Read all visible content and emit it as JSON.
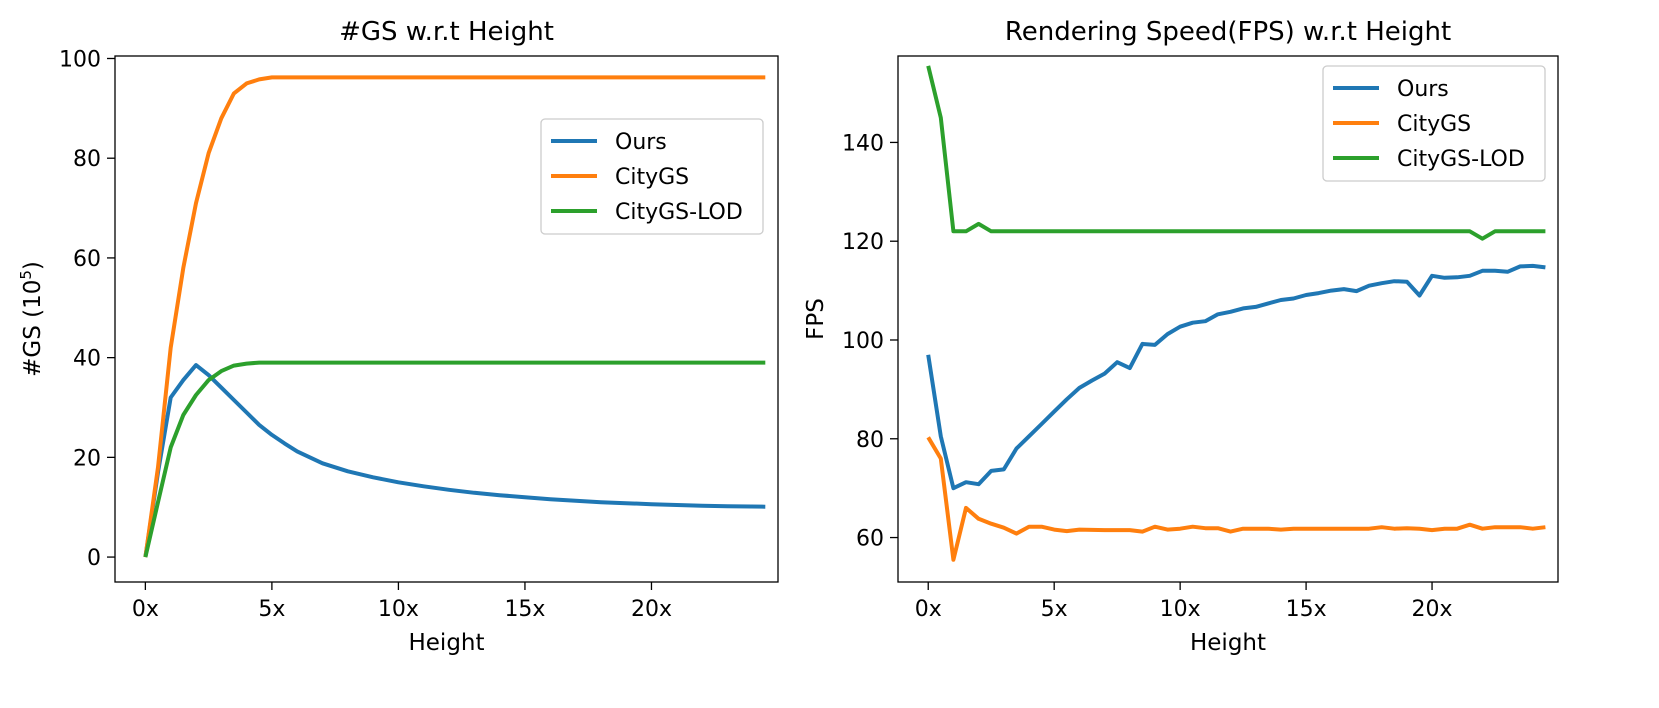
{
  "colors": {
    "ours": "#1f77b4",
    "citygs": "#ff7f0e",
    "citygs_lod": "#2ca02c"
  },
  "chart_data": [
    {
      "type": "line",
      "title": "#GS w.r.t Height",
      "xlabel": "Height",
      "ylabel_prefix": "#GS (10",
      "ylabel_sup": "5",
      "ylabel_suffix": ")",
      "xlim": [
        -1.2,
        25
      ],
      "ylim": [
        -5,
        100.5
      ],
      "xticks": [
        0,
        5,
        10,
        15,
        20
      ],
      "xtick_labels": [
        "0x",
        "5x",
        "10x",
        "15x",
        "20x"
      ],
      "yticks": [
        0,
        20,
        40,
        60,
        80,
        100
      ],
      "ytick_labels": [
        "0",
        "20",
        "40",
        "60",
        "80",
        "100"
      ],
      "grid": false,
      "legend_position": "upper-right-inset",
      "series": [
        {
          "name": "Ours",
          "color_key": "ours",
          "points": [
            [
              0,
              0
            ],
            [
              0.5,
              17
            ],
            [
              1,
              32
            ],
            [
              1.5,
              35.5
            ],
            [
              2,
              38.5
            ],
            [
              2.5,
              36.5
            ],
            [
              3,
              34
            ],
            [
              3.5,
              31.5
            ],
            [
              4,
              29
            ],
            [
              4.5,
              26.5
            ],
            [
              5,
              24.5
            ],
            [
              5.5,
              22.8
            ],
            [
              6,
              21.2
            ],
            [
              7,
              18.8
            ],
            [
              8,
              17.2
            ],
            [
              9,
              16
            ],
            [
              10,
              15
            ],
            [
              11,
              14.2
            ],
            [
              12,
              13.5
            ],
            [
              13,
              12.9
            ],
            [
              14,
              12.4
            ],
            [
              15,
              12
            ],
            [
              16,
              11.6
            ],
            [
              17,
              11.3
            ],
            [
              18,
              11
            ],
            [
              19,
              10.8
            ],
            [
              20,
              10.6
            ],
            [
              21,
              10.45
            ],
            [
              22,
              10.3
            ],
            [
              23,
              10.2
            ],
            [
              24.5,
              10.1
            ]
          ]
        },
        {
          "name": "CityGS",
          "color_key": "citygs",
          "points": [
            [
              0,
              0
            ],
            [
              0.5,
              18
            ],
            [
              1,
              42
            ],
            [
              1.5,
              58
            ],
            [
              2,
              71
            ],
            [
              2.5,
              81
            ],
            [
              3,
              88
            ],
            [
              3.5,
              93
            ],
            [
              4,
              95
            ],
            [
              4.5,
              95.8
            ],
            [
              5,
              96.2
            ],
            [
              6,
              96.2
            ],
            [
              10,
              96.2
            ],
            [
              15,
              96.2
            ],
            [
              20,
              96.2
            ],
            [
              24.5,
              96.2
            ]
          ]
        },
        {
          "name": "CityGS-LOD",
          "color_key": "citygs_lod",
          "points": [
            [
              0,
              0
            ],
            [
              0.5,
              11
            ],
            [
              1,
              22
            ],
            [
              1.5,
              28.5
            ],
            [
              2,
              32.5
            ],
            [
              2.5,
              35.5
            ],
            [
              3,
              37.3
            ],
            [
              3.5,
              38.4
            ],
            [
              4,
              38.8
            ],
            [
              4.5,
              39
            ],
            [
              5,
              39
            ],
            [
              10,
              39
            ],
            [
              15,
              39
            ],
            [
              20,
              39
            ],
            [
              24.5,
              39
            ]
          ]
        }
      ]
    },
    {
      "type": "line",
      "title": "Rendering Speed(FPS) w.r.t Height",
      "xlabel": "Height",
      "ylabel": "FPS",
      "xlim": [
        -1.2,
        25
      ],
      "ylim": [
        51,
        157.5
      ],
      "xticks": [
        0,
        5,
        10,
        15,
        20
      ],
      "xtick_labels": [
        "0x",
        "5x",
        "10x",
        "15x",
        "20x"
      ],
      "yticks": [
        60,
        80,
        100,
        120,
        140
      ],
      "ytick_labels": [
        "60",
        "80",
        "100",
        "120",
        "140"
      ],
      "grid": false,
      "legend_position": "upper-right",
      "series": [
        {
          "name": "Ours",
          "color_key": "ours",
          "points": [
            [
              0,
              97
            ],
            [
              0.5,
              80.5
            ],
            [
              1,
              70
            ],
            [
              1.5,
              71.2
            ],
            [
              2,
              70.8
            ],
            [
              2.5,
              73.5
            ],
            [
              3,
              73.8
            ],
            [
              3.5,
              78
            ],
            [
              4,
              80.5
            ],
            [
              4.5,
              83
            ],
            [
              5,
              85.5
            ],
            [
              5.5,
              88
            ],
            [
              6,
              90.3
            ],
            [
              6.5,
              91.8
            ],
            [
              7,
              93.2
            ],
            [
              7.5,
              95.5
            ],
            [
              8,
              94.3
            ],
            [
              8.5,
              99.2
            ],
            [
              9,
              99
            ],
            [
              9.5,
              101.2
            ],
            [
              10,
              102.7
            ],
            [
              10.5,
              103.5
            ],
            [
              11,
              103.8
            ],
            [
              11.5,
              105.2
            ],
            [
              12,
              105.7
            ],
            [
              12.5,
              106.4
            ],
            [
              13,
              106.7
            ],
            [
              13.5,
              107.4
            ],
            [
              14,
              108.1
            ],
            [
              14.5,
              108.4
            ],
            [
              15,
              109.1
            ],
            [
              15.5,
              109.5
            ],
            [
              16,
              110
            ],
            [
              16.5,
              110.3
            ],
            [
              17,
              109.9
            ],
            [
              17.5,
              111
            ],
            [
              18,
              111.5
            ],
            [
              18.5,
              111.9
            ],
            [
              19,
              111.8
            ],
            [
              19.5,
              109
            ],
            [
              20,
              113
            ],
            [
              20.5,
              112.6
            ],
            [
              21,
              112.7
            ],
            [
              21.5,
              113
            ],
            [
              22,
              114
            ],
            [
              22.5,
              114
            ],
            [
              23,
              113.8
            ],
            [
              23.5,
              114.9
            ],
            [
              24,
              115
            ],
            [
              24.5,
              114.7
            ]
          ]
        },
        {
          "name": "CityGS",
          "color_key": "citygs",
          "points": [
            [
              0,
              80.3
            ],
            [
              0.5,
              76
            ],
            [
              1,
              55.5
            ],
            [
              1.5,
              66
            ],
            [
              2,
              63.8
            ],
            [
              2.5,
              62.8
            ],
            [
              3,
              62
            ],
            [
              3.5,
              60.8
            ],
            [
              4,
              62.2
            ],
            [
              4.5,
              62.2
            ],
            [
              5,
              61.6
            ],
            [
              5.5,
              61.3
            ],
            [
              6,
              61.6
            ],
            [
              7,
              61.5
            ],
            [
              8,
              61.5
            ],
            [
              8.5,
              61.2
            ],
            [
              9,
              62.2
            ],
            [
              9.5,
              61.6
            ],
            [
              10,
              61.8
            ],
            [
              10.5,
              62.2
            ],
            [
              11,
              61.9
            ],
            [
              11.5,
              61.9
            ],
            [
              12,
              61.2
            ],
            [
              12.5,
              61.8
            ],
            [
              13,
              61.8
            ],
            [
              13.5,
              61.8
            ],
            [
              14,
              61.6
            ],
            [
              14.5,
              61.8
            ],
            [
              15,
              61.8
            ],
            [
              16,
              61.8
            ],
            [
              17,
              61.8
            ],
            [
              17.5,
              61.8
            ],
            [
              18,
              62.1
            ],
            [
              18.5,
              61.8
            ],
            [
              19,
              61.9
            ],
            [
              19.5,
              61.8
            ],
            [
              20,
              61.5
            ],
            [
              20.5,
              61.8
            ],
            [
              21,
              61.8
            ],
            [
              21.5,
              62.6
            ],
            [
              22,
              61.8
            ],
            [
              22.5,
              62.1
            ],
            [
              23,
              62.1
            ],
            [
              23.5,
              62.1
            ],
            [
              24,
              61.8
            ],
            [
              24.5,
              62.1
            ]
          ]
        },
        {
          "name": "CityGS-LOD",
          "color_key": "citygs_lod",
          "points": [
            [
              0,
              155.5
            ],
            [
              0.5,
              145
            ],
            [
              1,
              122
            ],
            [
              1.5,
              122
            ],
            [
              2,
              123.5
            ],
            [
              2.5,
              122
            ],
            [
              3,
              122
            ],
            [
              5,
              122
            ],
            [
              10,
              122
            ],
            [
              15,
              122
            ],
            [
              20,
              122
            ],
            [
              21.5,
              122
            ],
            [
              22,
              120.5
            ],
            [
              22.5,
              122
            ],
            [
              23,
              122
            ],
            [
              24.5,
              122
            ]
          ]
        }
      ]
    }
  ]
}
